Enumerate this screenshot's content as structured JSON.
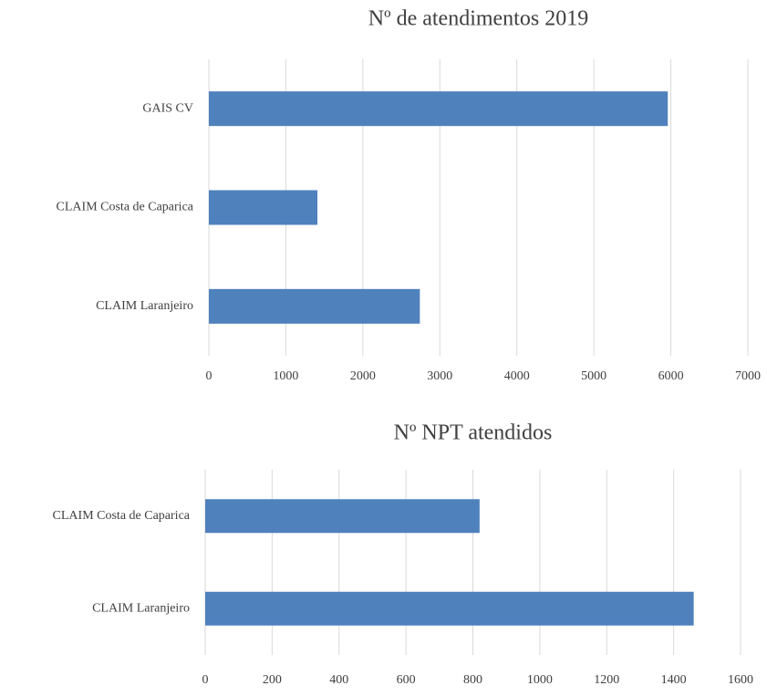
{
  "chart_data": [
    {
      "type": "hbar",
      "title": "Nº de atendimentos 2019",
      "categories": [
        "GAIS CV",
        "CLAIM Costa de Caparica",
        "CLAIM Laranjeiro"
      ],
      "values": [
        5960,
        1410,
        2740
      ],
      "color": "#4f81bd",
      "xlim": [
        0,
        7000
      ],
      "xticks": [
        0,
        1000,
        2000,
        3000,
        4000,
        5000,
        6000,
        7000
      ],
      "grid": true
    },
    {
      "type": "hbar",
      "title": "Nº NPT atendidos",
      "categories": [
        "CLAIM Costa de Caparica",
        "CLAIM Laranjeiro"
      ],
      "values": [
        820,
        1460
      ],
      "color": "#4f81bd",
      "xlim": [
        0,
        1600
      ],
      "xticks": [
        0,
        200,
        400,
        600,
        800,
        1000,
        1200,
        1400,
        1600
      ],
      "grid": true
    }
  ]
}
